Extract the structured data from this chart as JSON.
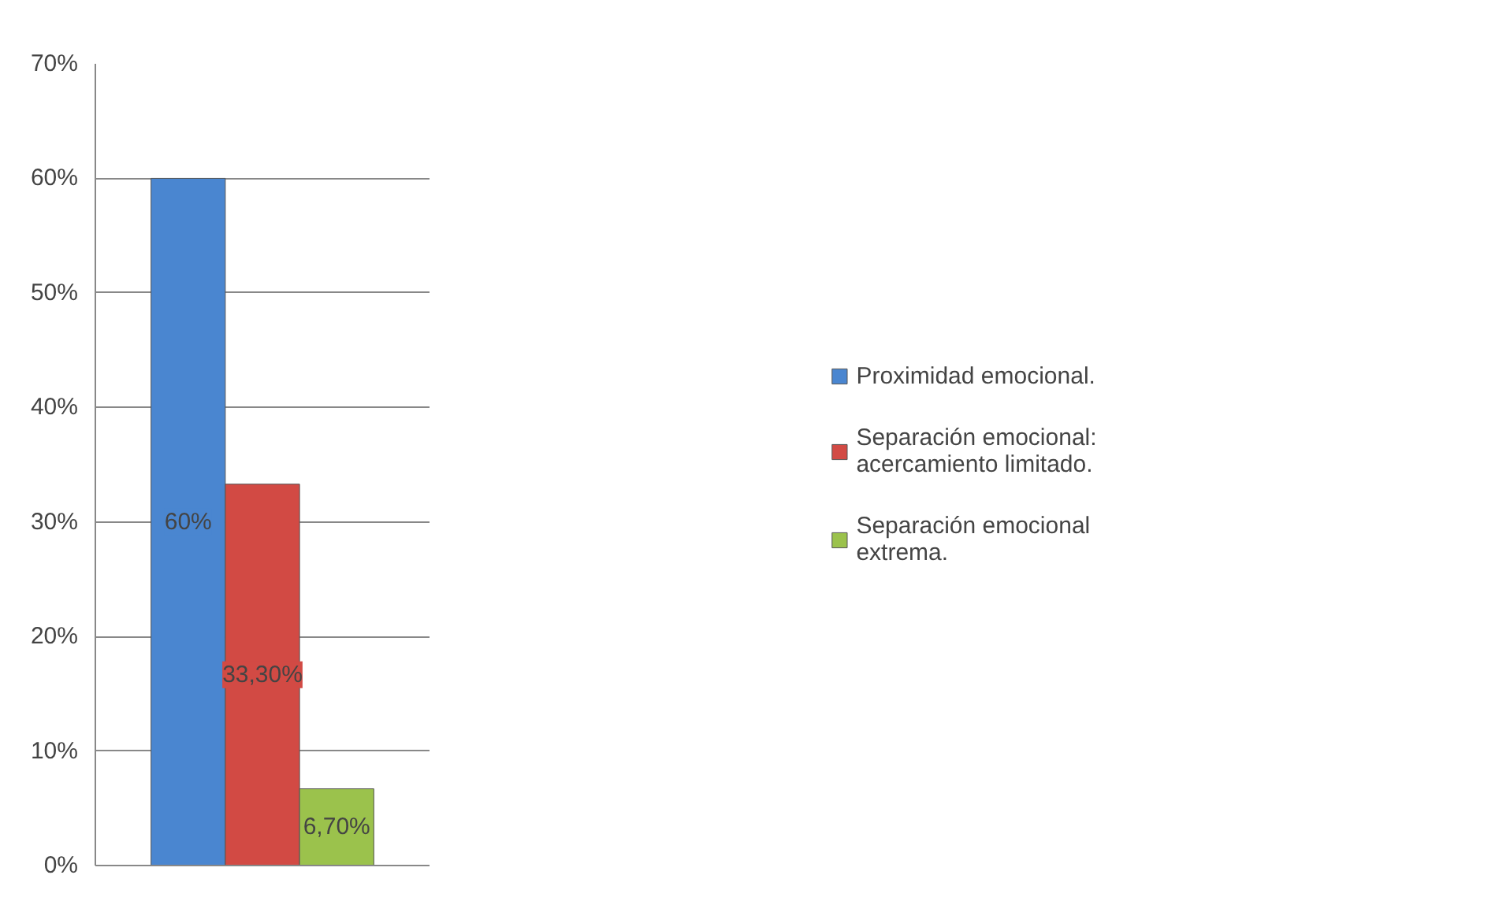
{
  "chart_data": {
    "type": "bar",
    "categories": [
      null
    ],
    "series": [
      {
        "name": "Proximidad emocional.",
        "color": "#4a86d0",
        "values": [
          60
        ],
        "value_labels": [
          "60%"
        ]
      },
      {
        "name": "Separación emocional: acercamiento limitado.",
        "color": "#d24a44",
        "values": [
          33.3
        ],
        "value_labels": [
          "33,30%"
        ]
      },
      {
        "name": "Separación emocional extrema.",
        "color": "#9bc24c",
        "values": [
          6.7
        ],
        "value_labels": [
          "6,70%"
        ]
      }
    ],
    "ylim": [
      0,
      70
    ],
    "yticks": [
      {
        "value": 0,
        "label": "0%"
      },
      {
        "value": 10,
        "label": "10%"
      },
      {
        "value": 20,
        "label": "20%"
      },
      {
        "value": 30,
        "label": "30%"
      },
      {
        "value": 40,
        "label": "40%"
      },
      {
        "value": 50,
        "label": "50%"
      },
      {
        "value": 60,
        "label": "60%"
      },
      {
        "value": 70,
        "label": "70%"
      }
    ],
    "grid": "y",
    "legend": "right"
  }
}
